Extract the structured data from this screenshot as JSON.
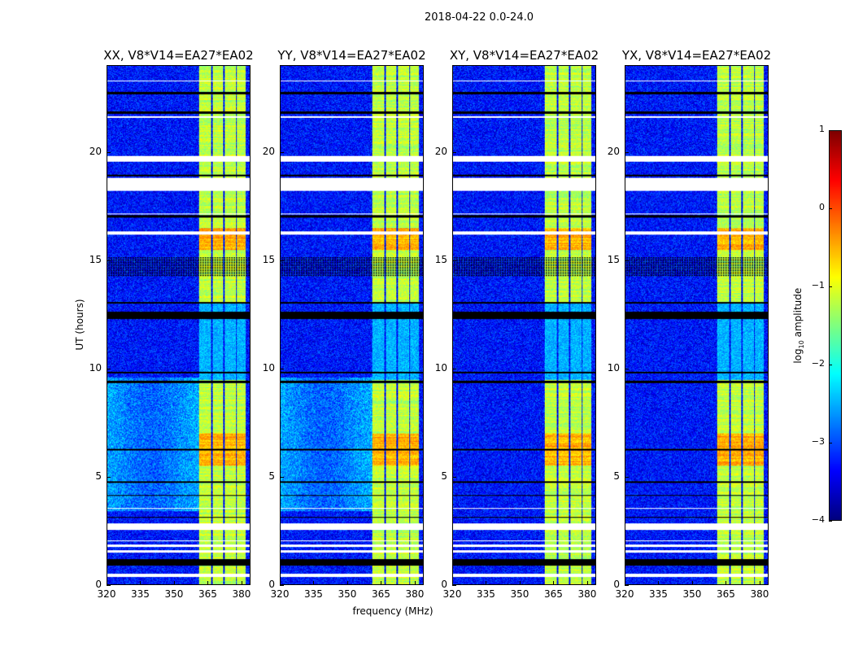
{
  "chart_data": {
    "type": "heatmap",
    "title": "2018-04-22 0.0-24.0",
    "xlabel": "frequency (MHz)",
    "ylabel": "UT (hours)",
    "xlim": [
      320,
      384
    ],
    "ylim": [
      0,
      24
    ],
    "xticks": [
      "320",
      "335",
      "350",
      "365",
      "380"
    ],
    "xtick_values": [
      320,
      335,
      350,
      365,
      380
    ],
    "yticks": [
      "0",
      "5",
      "10",
      "15",
      "20"
    ],
    "ytick_values": [
      0,
      5,
      10,
      15,
      20
    ],
    "panels": [
      {
        "title": "XX, V8*V14=EA27*EA02",
        "bright_background": true
      },
      {
        "title": "YY, V8*V14=EA27*EA02",
        "bright_background": true
      },
      {
        "title": "XY, V8*V14=EA27*EA02",
        "bright_background": false
      },
      {
        "title": "YX, V8*V14=EA27*EA02",
        "bright_background": false
      }
    ],
    "background_level": -3.3,
    "rfi_subbands_mhz": [
      [
        361,
        366.5
      ],
      [
        367.2,
        372
      ],
      [
        372.7,
        377.5
      ],
      [
        378.2,
        382
      ]
    ],
    "rfi_level": -1.2,
    "flagged_hours_white": [
      [
        0.35,
        0.5
      ],
      [
        1.5,
        1.6
      ],
      [
        1.75,
        1.85
      ],
      [
        2.0,
        2.05
      ],
      [
        2.55,
        2.85
      ],
      [
        3.5,
        3.55
      ],
      [
        16.2,
        16.35
      ],
      [
        17.15,
        17.2
      ],
      [
        18.25,
        18.85
      ],
      [
        19.6,
        19.85
      ],
      [
        21.6,
        21.7
      ],
      [
        23.3,
        23.35
      ]
    ],
    "flagged_hours_black": [
      [
        0.9,
        1.2
      ],
      [
        3.1,
        3.15
      ],
      [
        4.1,
        4.15
      ],
      [
        4.7,
        4.8
      ],
      [
        6.2,
        6.3
      ],
      [
        9.35,
        9.45
      ],
      [
        9.8,
        9.85
      ],
      [
        12.3,
        12.65
      ],
      [
        13.0,
        13.1
      ],
      [
        14.3,
        15.2
      ],
      [
        17.0,
        17.1
      ],
      [
        18.9,
        19.0
      ],
      [
        21.8,
        21.9
      ],
      [
        22.7,
        22.8
      ]
    ],
    "colorbar": {
      "label": "log10 amplitude",
      "range": [
        -4,
        1
      ],
      "ticks": [
        "1",
        "0",
        "−1",
        "−2",
        "−3",
        "−4"
      ],
      "tick_values": [
        1,
        0,
        -1,
        -2,
        -3,
        -4
      ]
    }
  }
}
